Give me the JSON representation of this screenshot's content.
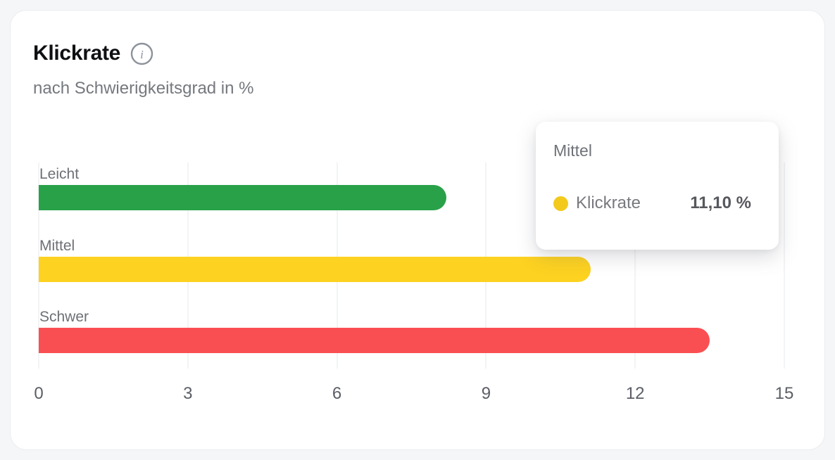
{
  "header": {
    "title": "Klickrate",
    "subtitle": "nach Schwierigkeitsgrad in %"
  },
  "chart_data": {
    "type": "bar",
    "orientation": "horizontal",
    "title": "Klickrate",
    "subtitle": "nach Schwierigkeitsgrad in %",
    "categories": [
      "Leicht",
      "Mittel",
      "Schwer"
    ],
    "series": [
      {
        "name": "Klickrate",
        "values": [
          8.2,
          11.1,
          13.5
        ]
      }
    ],
    "unit": "%",
    "xlabel": "",
    "ylabel": "",
    "xlim": [
      0,
      15
    ],
    "x_ticks": [
      0,
      3,
      6,
      9,
      12,
      15
    ],
    "grid": true,
    "legend_position": "none",
    "bar_colors": [
      "#29a149",
      "#fdd220",
      "#fa4f52"
    ]
  },
  "tooltip": {
    "title": "Mittel",
    "series_label": "Klickrate",
    "value": "11,10 %",
    "dot_color": "#f3c91c"
  },
  "colors": {
    "background": "#f5f6f8",
    "card": "#ffffff",
    "green": "#29a149",
    "yellow": "#fdd220",
    "red": "#fa4f52",
    "gridline": "#e6e8eb",
    "text_title": "#0f1012",
    "text_muted": "#6d7075",
    "tick_text": "#5b5e66",
    "info_icon": "#8d929b"
  }
}
